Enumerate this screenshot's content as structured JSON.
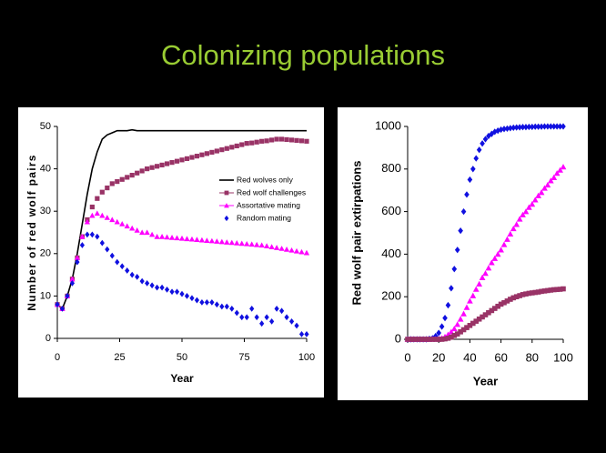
{
  "title": "Colonizing populations",
  "chart_data": [
    {
      "type": "line",
      "x_label": "Year",
      "y_label": "Number of red wolf pairs",
      "xlim": [
        0,
        100
      ],
      "ylim": [
        0,
        50
      ],
      "xticks": [
        0,
        25,
        50,
        75,
        100
      ],
      "yticks": [
        0,
        10,
        20,
        30,
        40,
        50
      ],
      "legend": "right",
      "x": [
        0,
        2,
        4,
        6,
        8,
        10,
        12,
        14,
        16,
        18,
        20,
        22,
        24,
        26,
        28,
        30,
        32,
        34,
        36,
        38,
        40,
        42,
        44,
        46,
        48,
        50,
        52,
        54,
        56,
        58,
        60,
        62,
        64,
        66,
        68,
        70,
        72,
        74,
        76,
        78,
        80,
        82,
        84,
        86,
        88,
        90,
        92,
        94,
        96,
        98,
        100
      ],
      "series": [
        {
          "name": "Red wolves only",
          "color": "#000000",
          "marker": "none",
          "values": [
            8,
            7,
            10,
            14,
            20,
            27,
            34,
            40,
            44,
            47,
            48,
            48.5,
            49,
            49,
            49,
            49.2,
            49,
            49,
            49,
            49,
            49,
            49,
            49,
            49,
            49,
            49,
            49,
            49,
            49,
            49,
            49,
            49,
            49,
            49,
            49,
            49,
            49,
            49,
            49,
            49,
            49,
            49,
            49,
            49,
            49,
            49,
            49,
            49,
            49,
            49,
            49
          ]
        },
        {
          "name": "Red wolf challenges",
          "color": "#993366",
          "marker": "square",
          "values": [
            8,
            7,
            10,
            14,
            19,
            24,
            28,
            31,
            33,
            34.5,
            35.5,
            36.5,
            37,
            37.5,
            38,
            38.5,
            39,
            39.5,
            40,
            40.3,
            40.6,
            40.9,
            41.2,
            41.5,
            41.8,
            42.1,
            42.4,
            42.7,
            43,
            43.3,
            43.6,
            43.9,
            44.2,
            44.5,
            44.8,
            45.1,
            45.4,
            45.7,
            46,
            46.1,
            46.3,
            46.5,
            46.6,
            46.8,
            47,
            47,
            46.9,
            46.8,
            46.7,
            46.6,
            46.5
          ]
        },
        {
          "name": "Assortative mating",
          "color": "#ff00ff",
          "marker": "triangle",
          "values": [
            8,
            7,
            10,
            14,
            19,
            24,
            27.5,
            29,
            29.5,
            29,
            28.5,
            28,
            27.5,
            27,
            26.5,
            26,
            25.5,
            25,
            25,
            24.5,
            24,
            24,
            23.9,
            23.8,
            23.7,
            23.6,
            23.5,
            23.4,
            23.3,
            23.2,
            23.1,
            23,
            22.9,
            22.8,
            22.7,
            22.6,
            22.5,
            22.4,
            22.3,
            22.2,
            22.1,
            22,
            21.8,
            21.6,
            21.4,
            21.2,
            21,
            20.8,
            20.6,
            20.4,
            20.2
          ]
        },
        {
          "name": "Random mating",
          "color": "#1010e0",
          "marker": "diamond",
          "values": [
            8,
            7,
            10,
            13,
            18,
            22,
            24.5,
            24.5,
            24,
            22.5,
            21,
            19.5,
            18,
            17,
            16,
            15,
            14.5,
            13.5,
            13,
            12.5,
            12,
            12,
            11.5,
            11,
            11,
            10.5,
            10,
            9.5,
            9,
            8.5,
            8.5,
            8.5,
            8,
            7.5,
            7.5,
            7,
            6,
            5,
            5,
            7,
            5,
            3.5,
            5,
            4,
            7,
            6.5,
            5,
            4,
            3,
            1,
            1
          ]
        }
      ]
    },
    {
      "type": "line",
      "x_label": "Year",
      "y_label": "Red wolf pair extirpations",
      "xlim": [
        0,
        100
      ],
      "ylim": [
        0,
        1000
      ],
      "xticks": [
        0,
        20,
        40,
        60,
        80,
        100
      ],
      "yticks": [
        0,
        200,
        400,
        600,
        800,
        1000
      ],
      "x": [
        0,
        2,
        4,
        6,
        8,
        10,
        12,
        14,
        16,
        18,
        20,
        22,
        24,
        26,
        28,
        30,
        32,
        34,
        36,
        38,
        40,
        42,
        44,
        46,
        48,
        50,
        52,
        54,
        56,
        58,
        60,
        62,
        64,
        66,
        68,
        70,
        72,
        74,
        76,
        78,
        80,
        82,
        84,
        86,
        88,
        90,
        92,
        94,
        96,
        98,
        100
      ],
      "series": [
        {
          "color": "#1010e0",
          "marker": "diamond",
          "values": [
            0,
            0,
            0,
            0,
            0,
            0,
            0,
            2,
            5,
            15,
            30,
            60,
            100,
            160,
            240,
            330,
            420,
            510,
            600,
            680,
            750,
            800,
            850,
            890,
            920,
            940,
            955,
            965,
            975,
            980,
            985,
            988,
            990,
            992,
            994,
            995,
            996,
            997,
            997,
            998,
            998,
            999,
            999,
            999,
            1000,
            1000,
            1000,
            1000,
            1000,
            1000,
            1000
          ]
        },
        {
          "color": "#ff00ff",
          "marker": "triangle",
          "values": [
            0,
            0,
            0,
            0,
            0,
            0,
            0,
            0,
            1,
            1,
            2,
            5,
            12,
            22,
            35,
            50,
            70,
            95,
            120,
            150,
            180,
            205,
            235,
            260,
            290,
            310,
            335,
            360,
            380,
            400,
            420,
            445,
            470,
            495,
            520,
            540,
            565,
            585,
            600,
            620,
            635,
            655,
            675,
            690,
            710,
            725,
            745,
            760,
            780,
            795,
            810
          ]
        },
        {
          "color": "#993366",
          "marker": "square",
          "values": [
            0,
            0,
            0,
            0,
            0,
            0,
            0,
            0,
            0,
            0,
            0,
            0,
            2,
            5,
            10,
            18,
            25,
            35,
            45,
            55,
            65,
            75,
            85,
            95,
            105,
            115,
            125,
            135,
            145,
            155,
            165,
            172,
            180,
            188,
            195,
            200,
            205,
            210,
            213,
            216,
            218,
            220,
            222,
            225,
            227,
            229,
            231,
            233,
            234,
            235,
            237
          ]
        }
      ]
    }
  ]
}
